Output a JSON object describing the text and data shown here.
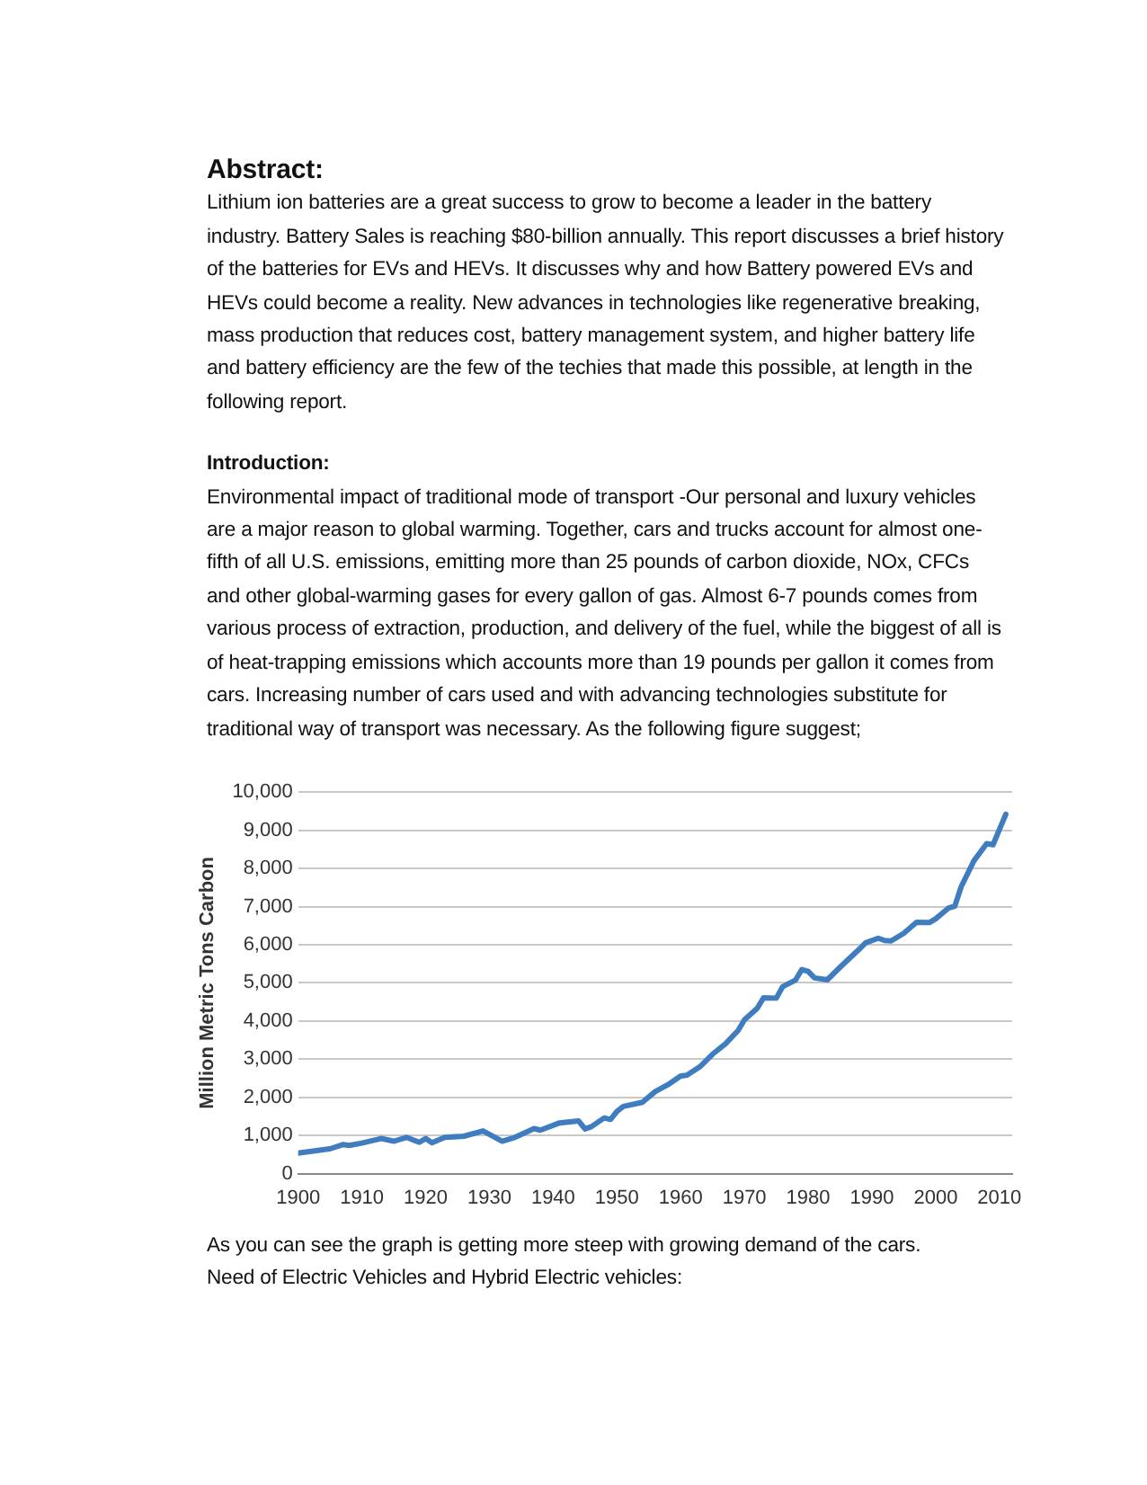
{
  "chart_data": {
    "type": "line",
    "ylabel": "Million Metric Tons Carbon",
    "annotations": [
      "Abstract:",
      "Lithium ion batteries are a great success to grow to become a leader in the battery industry. Battery Sales is reaching $80-billion annually. This report discusses a brief history of the batteries for EVs and HEVs. It discusses why and how Battery powered EVs and HEVs could become a reality. New advances in technologies like regenerative breaking, mass production that reduces cost, battery management system, and higher battery life and battery efficiency are the few of the techies that made this possible, at length in the following report.",
      "Introduction:",
      "Environmental impact of traditional mode of transport -Our personal and luxury vehicles are a major reason to global warming. Together, cars and trucks account for almost one-fifth of all U.S. emissions, emitting more than 25 pounds of carbon dioxide, NOx, CFCs and other global-warming gases for every gallon of gas. Almost 6-7 pounds comes from various process of extraction, production, and delivery of the fuel, while the biggest of all is of heat-trapping emissions which accounts more than 19 pounds per gallon it comes from cars. Increasing number of cars used and with advancing technologies substitute for traditional way of transport was necessary. As the following figure suggest;",
      "As you can see the graph is getting more steep with growing demand of the cars.",
      "Need of Electric Vehicles and Hybrid Electric vehicles:"
    ],
    "x": [
      1900,
      1905,
      1907,
      1908,
      1910,
      1913,
      1915,
      1917,
      1919,
      1920,
      1921,
      1923,
      1926,
      1929,
      1932,
      1934,
      1937,
      1938,
      1941,
      1944,
      1945,
      1946,
      1948,
      1949,
      1950,
      1951,
      1954,
      1956,
      1958,
      1960,
      1961,
      1963,
      1965,
      1967,
      1969,
      1970,
      1972,
      1973,
      1975,
      1976,
      1978,
      1979,
      1980,
      1981,
      1983,
      1985,
      1988,
      1989,
      1991,
      1992,
      1993,
      1995,
      1997,
      1999,
      2000,
      2002,
      2003,
      2004,
      2006,
      2008,
      2009,
      2011
    ],
    "series": [
      {
        "color": "#3f7dc0",
        "values": [
          540,
          650,
          760,
          740,
          800,
          920,
          850,
          950,
          820,
          920,
          810,
          950,
          980,
          1120,
          850,
          950,
          1180,
          1140,
          1330,
          1380,
          1170,
          1230,
          1460,
          1420,
          1630,
          1760,
          1870,
          2150,
          2330,
          2560,
          2580,
          2800,
          3130,
          3400,
          3750,
          4030,
          4330,
          4610,
          4600,
          4900,
          5070,
          5350,
          5300,
          5130,
          5080,
          5410,
          5880,
          6050,
          6170,
          6110,
          6100,
          6300,
          6590,
          6580,
          6680,
          6960,
          7010,
          7520,
          8200,
          8650,
          8620,
          9420
        ]
      }
    ],
    "xlim": [
      1900,
      2012
    ],
    "xticks": [
      1900,
      1910,
      1920,
      1930,
      1940,
      1950,
      1960,
      1970,
      1980,
      1990,
      2000,
      2010
    ],
    "ylim": [
      0,
      10000
    ],
    "yticks": [
      {
        "value": 0,
        "label": "0"
      },
      {
        "value": 1000,
        "label": "1,000"
      },
      {
        "value": 2000,
        "label": "2,000"
      },
      {
        "value": 3000,
        "label": "3,000"
      },
      {
        "value": 4000,
        "label": "4,000"
      },
      {
        "value": 5000,
        "label": "5,000"
      },
      {
        "value": 6000,
        "label": "6,000"
      },
      {
        "value": 7000,
        "label": "7,000"
      },
      {
        "value": 8000,
        "label": "8,000"
      },
      {
        "value": 9000,
        "label": "9,000"
      },
      {
        "value": 10000,
        "label": "10,000"
      }
    ],
    "grid": "y",
    "legend": false,
    "marker": "none",
    "line_style": "solid"
  }
}
